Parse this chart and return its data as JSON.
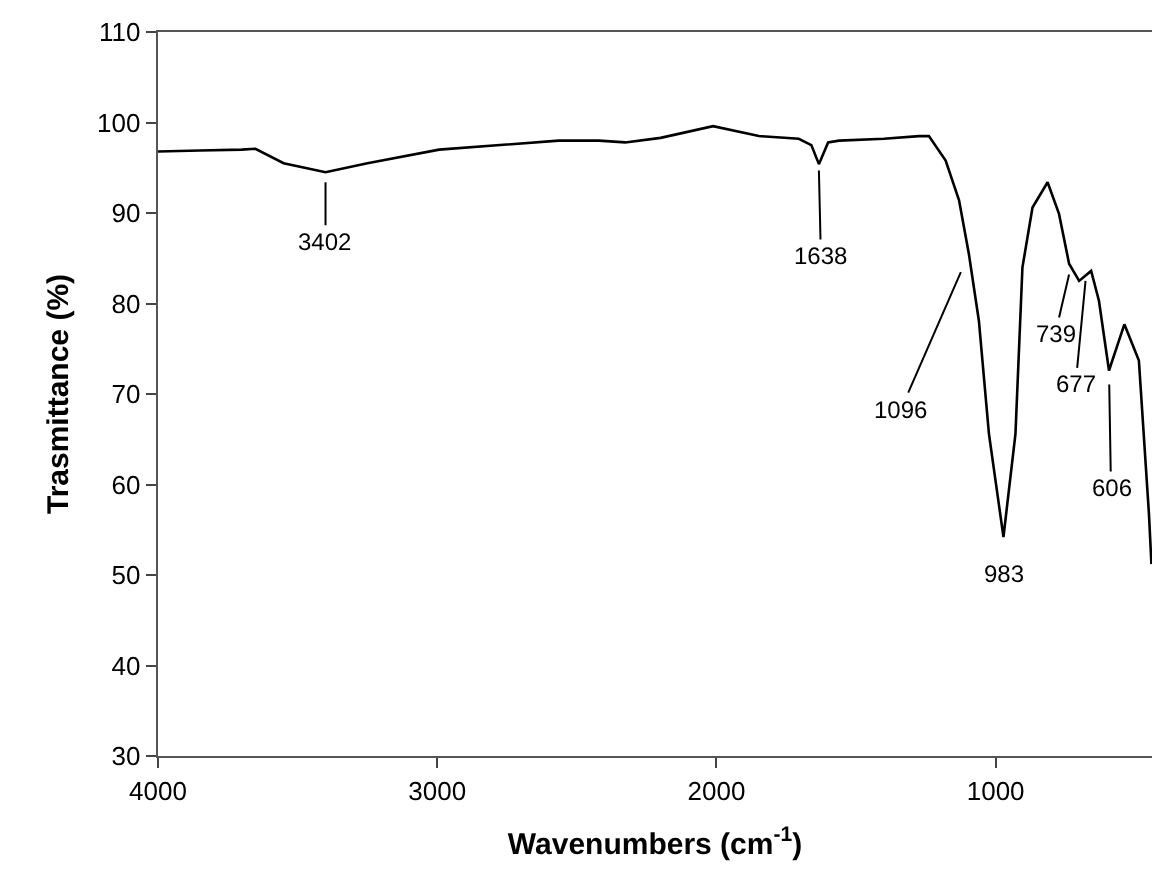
{
  "chart_data": {
    "type": "line",
    "xlabel": "Wavenumbers (cm$^{-1}$)",
    "ylabel": "Trasmittance (%)",
    "xlim": [
      4000,
      440
    ],
    "xticks": [
      4000,
      3000,
      2000,
      1000
    ],
    "ylim": [
      30,
      110
    ],
    "yticks": [
      30,
      40,
      50,
      60,
      70,
      80,
      90,
      100,
      110
    ],
    "grid": false,
    "marker": "none",
    "line_style": "solid",
    "x": [
      4000,
      3850,
      3700,
      3651,
      3550,
      3400,
      3250,
      2993,
      2565,
      2421,
      2327,
      2200,
      2012,
      1848,
      1705,
      1660,
      1633,
      1600,
      1561,
      1400,
      1275,
      1239,
      1179,
      1131,
      1096,
      1060,
      1024,
      972,
      929,
      904,
      868,
      814,
      773,
      737,
      701,
      658,
      630,
      594,
      539,
      487,
      451,
      442
    ],
    "series": [
      {
        "color": "#000000",
        "values": [
          96.8,
          96.9,
          97.0,
          97.1,
          95.5,
          94.5,
          95.5,
          97.0,
          98.0,
          98.0,
          97.8,
          98.3,
          99.6,
          98.5,
          98.2,
          97.5,
          95.4,
          97.8,
          98.0,
          98.2,
          98.5,
          98.5,
          95.8,
          91.4,
          85.5,
          78.1,
          65.6,
          54.2,
          65.6,
          84.0,
          90.6,
          93.4,
          89.9,
          84.4,
          82.5,
          83.6,
          80.3,
          72.6,
          77.7,
          73.7,
          56.8,
          51.2
        ]
      }
    ],
    "annotations": [
      {
        "text": "3402",
        "x": 3400,
        "y": 93.4
      },
      {
        "text": "1638",
        "x": 1633,
        "y": 94.7
      },
      {
        "text": "1096",
        "x": 1096,
        "y": 85.5
      },
      {
        "text": "983",
        "x": 972,
        "y": 54.2
      },
      {
        "text": "739",
        "x": 737,
        "y": 83.2
      },
      {
        "text": "677",
        "x": 678,
        "y": 82.5
      },
      {
        "text": "606",
        "x": 594,
        "y": 72.6
      }
    ]
  }
}
